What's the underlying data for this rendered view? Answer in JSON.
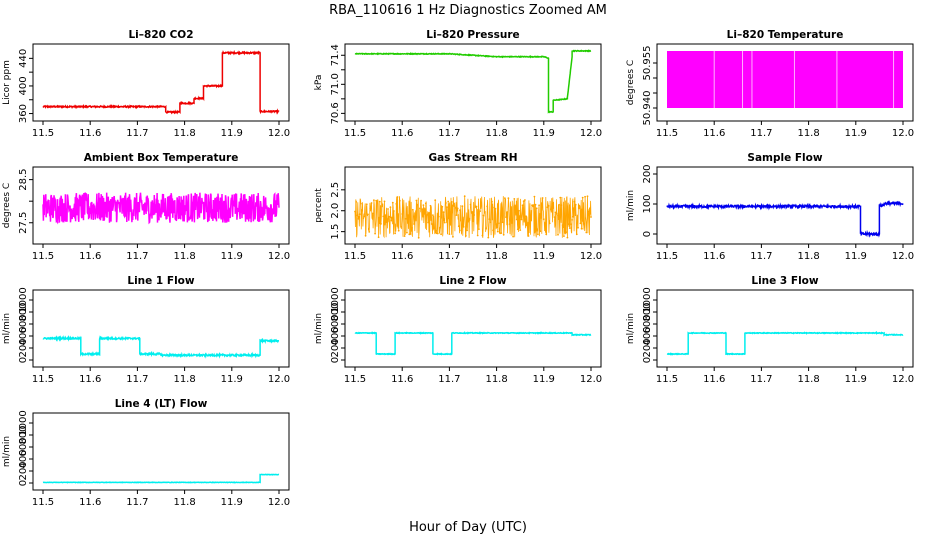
{
  "figure": {
    "title": "RBA_110616  1 Hz Diagnostics Zoomed AM",
    "xlabel": "Hour of Day (UTC)"
  },
  "chart_data": [
    {
      "id": "co2",
      "type": "line",
      "title": "Li–820 CO2",
      "ylabel": "Licor ppm",
      "color": "#ee0000",
      "xlim": [
        11.5,
        12.0
      ],
      "ylim": [
        355,
        455
      ],
      "xticks": [
        "11.5",
        "11.6",
        "11.7",
        "11.8",
        "11.9",
        "12.0"
      ],
      "yticks": [
        "360",
        "400",
        "440"
      ],
      "yticks_extra": [
        "380",
        "420"
      ],
      "x": [
        11.5,
        11.76,
        11.76,
        11.79,
        11.79,
        11.82,
        11.82,
        11.84,
        11.84,
        11.88,
        11.88,
        11.96,
        11.96,
        12.0
      ],
      "y": [
        370,
        370,
        362,
        362,
        375,
        375,
        382,
        382,
        400,
        400,
        448,
        448,
        363,
        363
      ],
      "noise": 1
    },
    {
      "id": "pressure",
      "type": "line",
      "title": "Li–820 Pressure",
      "ylabel": "kPa",
      "color": "#22cc00",
      "xlim": [
        11.5,
        12.0
      ],
      "ylim": [
        70.55,
        71.5
      ],
      "xticks": [
        "11.5",
        "11.6",
        "11.7",
        "11.8",
        "11.9",
        "12.0"
      ],
      "yticks": [
        "70.6",
        "71.0",
        "71.4"
      ],
      "yticks_extra": [
        "70.8",
        "71.2"
      ],
      "x": [
        11.5,
        11.7,
        11.8,
        11.9,
        11.91,
        11.91,
        11.92,
        11.92,
        11.95,
        11.95,
        11.96,
        11.96,
        12.0
      ],
      "y": [
        71.42,
        71.42,
        71.38,
        71.38,
        71.36,
        70.62,
        70.62,
        70.78,
        70.8,
        70.82,
        71.38,
        71.46,
        71.46
      ],
      "noise": 0.005
    },
    {
      "id": "temperature",
      "type": "line",
      "title": "Li–820 Temperature",
      "ylabel": "degrees C",
      "color": "#ff00ff",
      "xlim": [
        11.5,
        12.0
      ],
      "ylim": [
        50.937,
        50.96
      ],
      "xticks": [
        "11.5",
        "11.6",
        "11.7",
        "11.8",
        "11.9",
        "12.0"
      ],
      "yticks": [
        "50.940",
        "50.955"
      ],
      "yticks_extra": [
        "50.945",
        "50.950"
      ],
      "x": [
        11.5,
        12.0
      ],
      "y": [
        50.94,
        50.959
      ],
      "style": "fill-band"
    },
    {
      "id": "ambient",
      "type": "line",
      "title": "Ambient Box Temperature",
      "ylabel": "degrees C",
      "color": "#ff00ff",
      "xlim": [
        11.5,
        12.0
      ],
      "ylim": [
        27.1,
        28.7
      ],
      "xticks": [
        "11.5",
        "11.6",
        "11.7",
        "11.8",
        "11.9",
        "12.0"
      ],
      "yticks": [
        "27.5",
        "28.5"
      ],
      "yticks_extra": [
        "28.0"
      ],
      "x": [
        11.5,
        12.0
      ],
      "y": [
        27.85,
        27.85
      ],
      "noise": 0.35
    },
    {
      "id": "rh",
      "type": "line",
      "title": "Gas Stream RH",
      "ylabel": "percent",
      "color": "#ffa500",
      "xlim": [
        11.5,
        12.0
      ],
      "ylim": [
        1.3,
        2.95
      ],
      "xticks": [
        "11.5",
        "11.6",
        "11.7",
        "11.8",
        "11.9",
        "12.0"
      ],
      "yticks": [
        "1.5",
        "2.0",
        "2.5"
      ],
      "x": [
        11.5,
        12.0
      ],
      "y": [
        1.85,
        1.85
      ],
      "noise": 0.5,
      "markers": true
    },
    {
      "id": "sample",
      "type": "line",
      "title": "Sample Flow",
      "ylabel": "ml/min",
      "color": "#0000ee",
      "xlim": [
        11.5,
        12.0
      ],
      "ylim": [
        -20,
        210
      ],
      "xticks": [
        "11.5",
        "11.6",
        "11.7",
        "11.8",
        "11.9",
        "12.0"
      ],
      "yticks": [
        "0",
        "100",
        "200"
      ],
      "x": [
        11.5,
        11.91,
        11.91,
        11.95,
        11.95,
        11.96,
        11.96,
        12.0
      ],
      "y": [
        92,
        92,
        0,
        0,
        95,
        95,
        102,
        102
      ],
      "noise": 4
    },
    {
      "id": "line1",
      "type": "line",
      "title": "Line 1 Flow",
      "ylabel": "ml/min",
      "color": "#00eeee",
      "xlim": [
        11.5,
        12.0
      ],
      "ylim": [
        -50,
        1100
      ],
      "xticks": [
        "11.5",
        "11.6",
        "11.7",
        "11.8",
        "11.9",
        "12.0"
      ],
      "yticks": [
        "0",
        "200",
        "400",
        "600",
        "800",
        "1000"
      ],
      "x": [
        11.5,
        11.58,
        11.58,
        11.62,
        11.62,
        11.705,
        11.705,
        11.75,
        11.75,
        11.96,
        11.96,
        12.0
      ],
      "y": [
        360,
        360,
        100,
        100,
        360,
        360,
        100,
        100,
        80,
        80,
        320,
        320
      ],
      "noise": 14
    },
    {
      "id": "line2",
      "type": "line",
      "title": "Line 2 Flow",
      "ylabel": "ml/min",
      "color": "#00eeee",
      "xlim": [
        11.5,
        12.0
      ],
      "ylim": [
        -50,
        1100
      ],
      "xticks": [
        "11.5",
        "11.6",
        "11.7",
        "11.8",
        "11.9",
        "12.0"
      ],
      "yticks": [
        "0",
        "200",
        "400",
        "600",
        "800",
        "1000"
      ],
      "x": [
        11.5,
        11.545,
        11.545,
        11.585,
        11.585,
        11.665,
        11.665,
        11.705,
        11.705,
        11.96,
        11.96,
        12.0
      ],
      "y": [
        450,
        450,
        100,
        100,
        450,
        450,
        100,
        100,
        450,
        450,
        420,
        420
      ],
      "noise": 6
    },
    {
      "id": "line3",
      "type": "line",
      "title": "Line 3 Flow",
      "ylabel": "ml/min",
      "color": "#00eeee",
      "xlim": [
        11.5,
        12.0
      ],
      "ylim": [
        -50,
        1100
      ],
      "xticks": [
        "11.5",
        "11.6",
        "11.7",
        "11.8",
        "11.9",
        "12.0"
      ],
      "yticks": [
        "0",
        "200",
        "400",
        "600",
        "800",
        "1000"
      ],
      "x": [
        11.5,
        11.545,
        11.545,
        11.625,
        11.625,
        11.665,
        11.665,
        11.96,
        11.96,
        12.0
      ],
      "y": [
        100,
        100,
        450,
        450,
        100,
        100,
        450,
        450,
        420,
        420
      ],
      "noise": 6
    },
    {
      "id": "line4",
      "type": "line",
      "title": "Line 4 (LT) Flow",
      "ylabel": "ml/min",
      "color": "#00eeee",
      "xlim": [
        11.5,
        12.0
      ],
      "ylim": [
        -50,
        1100
      ],
      "xticks": [
        "11.5",
        "11.6",
        "11.7",
        "11.8",
        "11.9",
        "12.0"
      ],
      "yticks": [
        "0",
        "200",
        "400",
        "600",
        "800",
        "1000"
      ],
      "x": [
        11.5,
        11.96,
        11.96,
        12.0
      ],
      "y": [
        10,
        10,
        140,
        140
      ],
      "noise": 3
    }
  ]
}
